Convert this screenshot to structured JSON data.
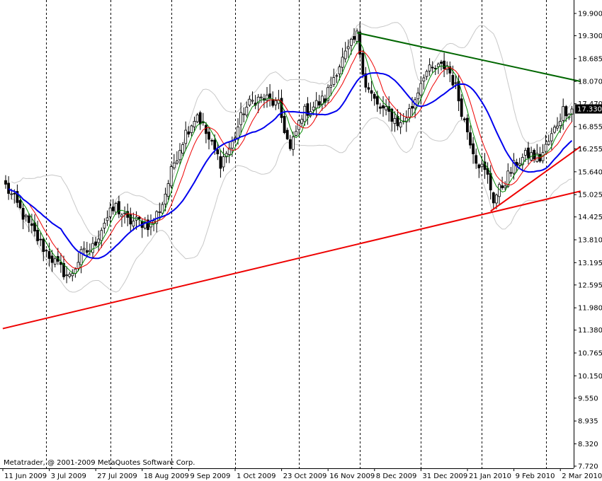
{
  "chart_data": {
    "type": "candlestick",
    "y_ticks": [
      19.9,
      19.3,
      18.685,
      18.07,
      17.47,
      16.855,
      16.255,
      15.64,
      15.025,
      14.425,
      13.81,
      13.195,
      12.595,
      11.98,
      11.38,
      10.765,
      10.15,
      9.55,
      8.935,
      8.32,
      7.72
    ],
    "y_tick_labels": [
      "19.900",
      "19.300",
      "18.685",
      "18.070",
      "17.470",
      "16.855",
      "16.255",
      "15.640",
      "15.025",
      "14.425",
      "13.810",
      "13.195",
      "12.595",
      "11.980",
      "11.380",
      "10.765",
      "10.150",
      "9.550",
      "8.935",
      "8.320",
      "7.720"
    ],
    "ylim": [
      7.62,
      20.26
    ],
    "x_labels": [
      "11 Jun 2009",
      "3 Jul 2009",
      "27 Jul 2009",
      "18 Aug 2009",
      "9 Sep 2009",
      "1 Oct 2009",
      "23 Oct 2009",
      "16 Nov 2009",
      "8 Dec 2009",
      "31 Dec 2009",
      "21 Jan 2010",
      "9 Feb 2010",
      "2 Mar 2010"
    ],
    "x_label_bar_index": [
      0,
      16,
      32,
      48,
      64,
      80,
      96,
      112,
      128,
      144,
      160,
      176,
      192
    ],
    "vertical_grid_bar_index": [
      14,
      36,
      57,
      79,
      101,
      122,
      143,
      164,
      186
    ],
    "bar_count": 196,
    "current_price": "17.330",
    "copyright": "Metatrader, @ 2001-2009 MetaQuotes Software Corp.",
    "closes_anchor": [
      [
        0,
        15.25
      ],
      [
        4,
        14.75
      ],
      [
        8,
        14.2
      ],
      [
        13,
        13.6
      ],
      [
        18,
        13.1
      ],
      [
        22,
        12.8
      ],
      [
        26,
        13.4
      ],
      [
        30,
        13.6
      ],
      [
        34,
        14.3
      ],
      [
        38,
        14.7
      ],
      [
        42,
        14.3
      ],
      [
        46,
        14.3
      ],
      [
        50,
        14.2
      ],
      [
        54,
        14.8
      ],
      [
        58,
        15.9
      ],
      [
        62,
        16.7
      ],
      [
        66,
        17.2
      ],
      [
        70,
        16.5
      ],
      [
        74,
        15.9
      ],
      [
        78,
        16.4
      ],
      [
        82,
        17.3
      ],
      [
        86,
        17.6
      ],
      [
        90,
        17.6
      ],
      [
        94,
        17.4
      ],
      [
        98,
        16.2
      ],
      [
        102,
        17.2
      ],
      [
        106,
        17.4
      ],
      [
        110,
        17.6
      ],
      [
        114,
        18.4
      ],
      [
        118,
        18.9
      ],
      [
        121,
        19.3
      ],
      [
        124,
        18.0
      ],
      [
        128,
        17.4
      ],
      [
        132,
        17.2
      ],
      [
        136,
        16.9
      ],
      [
        140,
        17.4
      ],
      [
        144,
        18.3
      ],
      [
        148,
        18.4
      ],
      [
        152,
        18.5
      ],
      [
        155,
        17.9
      ],
      [
        158,
        17.0
      ],
      [
        162,
        16.0
      ],
      [
        166,
        15.5
      ],
      [
        168,
        14.9
      ],
      [
        172,
        15.4
      ],
      [
        176,
        15.9
      ],
      [
        180,
        16.1
      ],
      [
        184,
        16.0
      ],
      [
        188,
        16.6
      ],
      [
        192,
        17.3
      ],
      [
        195,
        17.33
      ]
    ],
    "series": [
      {
        "name": "",
        "kind": "moving-average-slow",
        "color": "#0000ee"
      },
      {
        "name": "",
        "kind": "moving-average-mid",
        "color": "#ee0000"
      },
      {
        "name": "",
        "kind": "moving-average-fast",
        "color": "#008800"
      },
      {
        "name": "",
        "kind": "bollinger-bands",
        "color": "#c8c8c8"
      }
    ],
    "trendlines": [
      {
        "color": "#ee0000",
        "from": [
          -1,
          11.42
        ],
        "to": [
          198,
          15.12
        ]
      },
      {
        "color": "#ee0000",
        "from": [
          167,
          14.58
        ],
        "to": [
          198,
          16.32
        ]
      },
      {
        "color": "#006600",
        "from": [
          121,
          19.38
        ],
        "to": [
          198,
          18.07
        ]
      }
    ],
    "grid": {
      "vertical": "dashed",
      "horizontal": "none"
    }
  }
}
